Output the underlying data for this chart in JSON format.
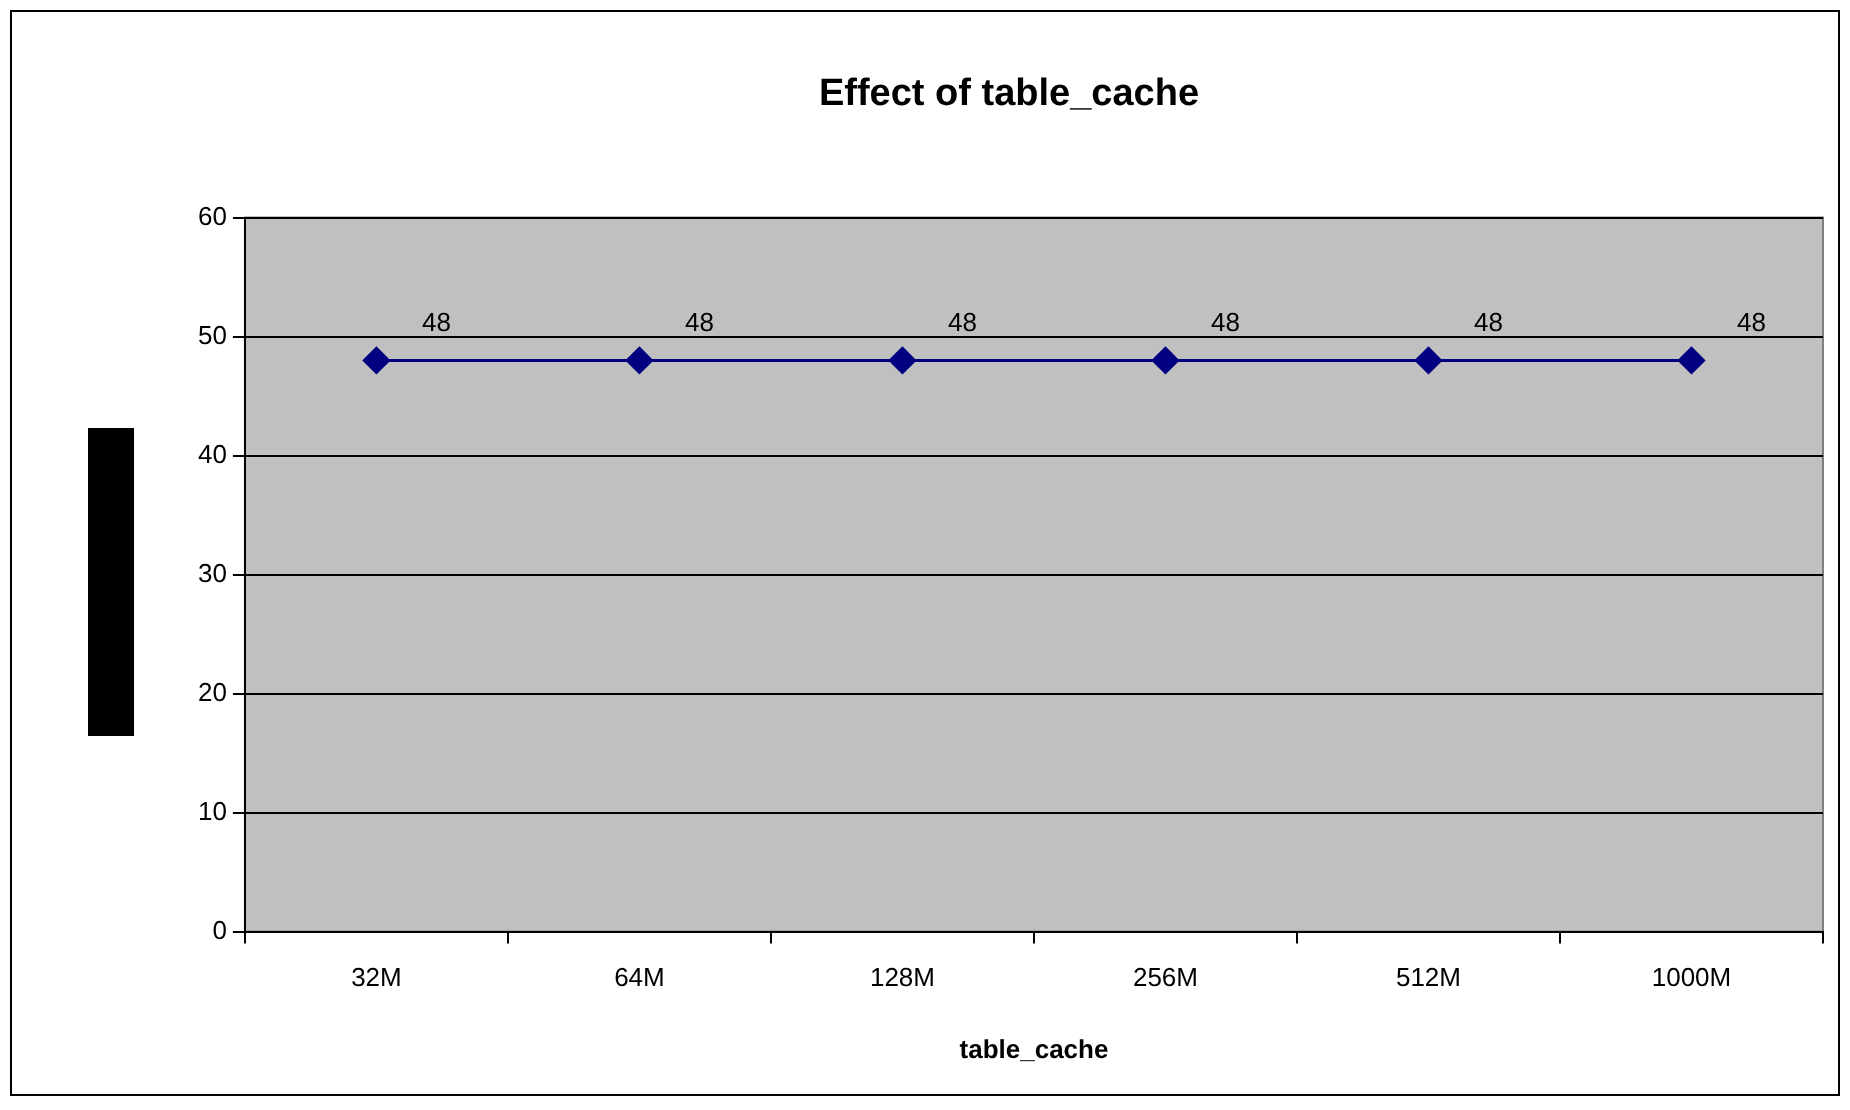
{
  "chart_data": {
    "type": "line",
    "title": "Effect of table_cache",
    "xlabel": "table_cache",
    "categories": [
      "32M",
      "64M",
      "128M",
      "256M",
      "512M",
      "1000M"
    ],
    "series": [
      {
        "color": "#000080",
        "values": [
          48,
          48,
          48,
          48,
          48,
          48
        ]
      }
    ],
    "ylim": [
      0,
      60
    ],
    "yticks": [
      0,
      10,
      20,
      30,
      40,
      50,
      60
    ],
    "grid": "y",
    "legend": false,
    "marker": "diamond",
    "line_style": "solid",
    "data_labels": true
  }
}
